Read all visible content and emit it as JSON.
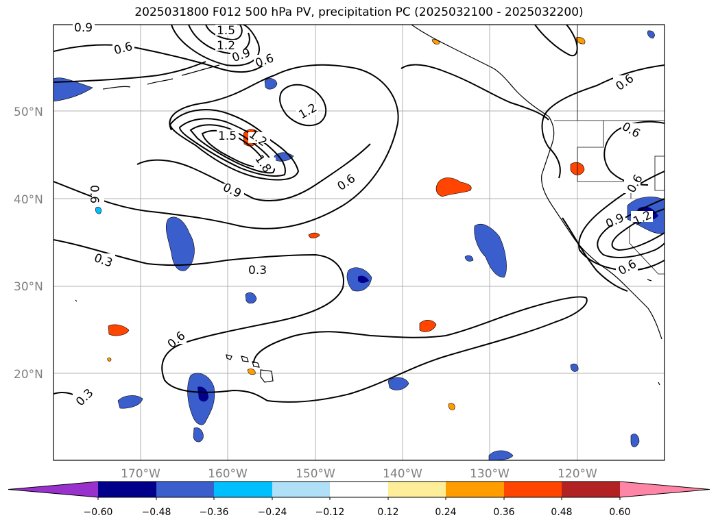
{
  "title": "2025031800 F012 500 hPa PV, precipitation PC (2025032100 - 2025032200)",
  "map": {
    "lat_labels": [
      "50°N",
      "40°N",
      "30°N",
      "20°N"
    ],
    "lon_labels": [
      "170°W",
      "160°W",
      "150°W",
      "140°W",
      "130°W",
      "120°W"
    ],
    "contour_labels": [
      "0.9",
      "1.5",
      "1.2",
      "0.9",
      "0.6",
      "0.6",
      "1.2",
      "1.5",
      "1.2",
      "1.8",
      "0.9",
      "0.6",
      "0.6",
      "0.6",
      "0.3",
      "0.3",
      "0.6",
      "0.3",
      "0.6",
      "0.6",
      "0.9",
      "1.2",
      "0.6"
    ],
    "shading_colors": {
      "dark_navy": "#00008b",
      "medium_blue": "#3a5fcd",
      "sky_blue": "#00bfff",
      "light_blue": "#add8e6",
      "light_yellow": "#ffee99",
      "orange": "#ff9d00",
      "red_orange": "#ff4500"
    }
  },
  "colorbar": {
    "tick_labels": [
      "−0.60",
      "−0.48",
      "−0.36",
      "−0.24",
      "−0.12",
      "0.12",
      "0.24",
      "0.36",
      "0.48",
      "0.60"
    ],
    "colors": [
      "#9932cc",
      "#00008b",
      "#3a5fcd",
      "#00bfff",
      "#b0e0f8",
      "#ffffff",
      "#ffee99",
      "#ff9d00",
      "#ff4500",
      "#b22222",
      "#ff85a6"
    ]
  }
}
